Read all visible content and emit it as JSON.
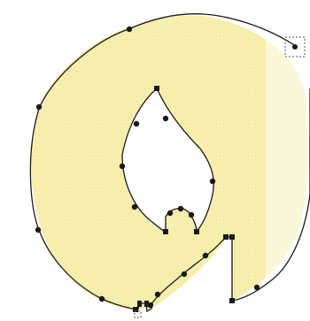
{
  "editor": {
    "fill_color": "#f7f0b0",
    "fill_texture_color": "#efe49a",
    "outline_color": "#1a1a1a",
    "node_color": "#1a1a1a",
    "icons": [
      "selection-handle-icon",
      "smooth-node-icon",
      "corner-node-icon"
    ]
  }
}
